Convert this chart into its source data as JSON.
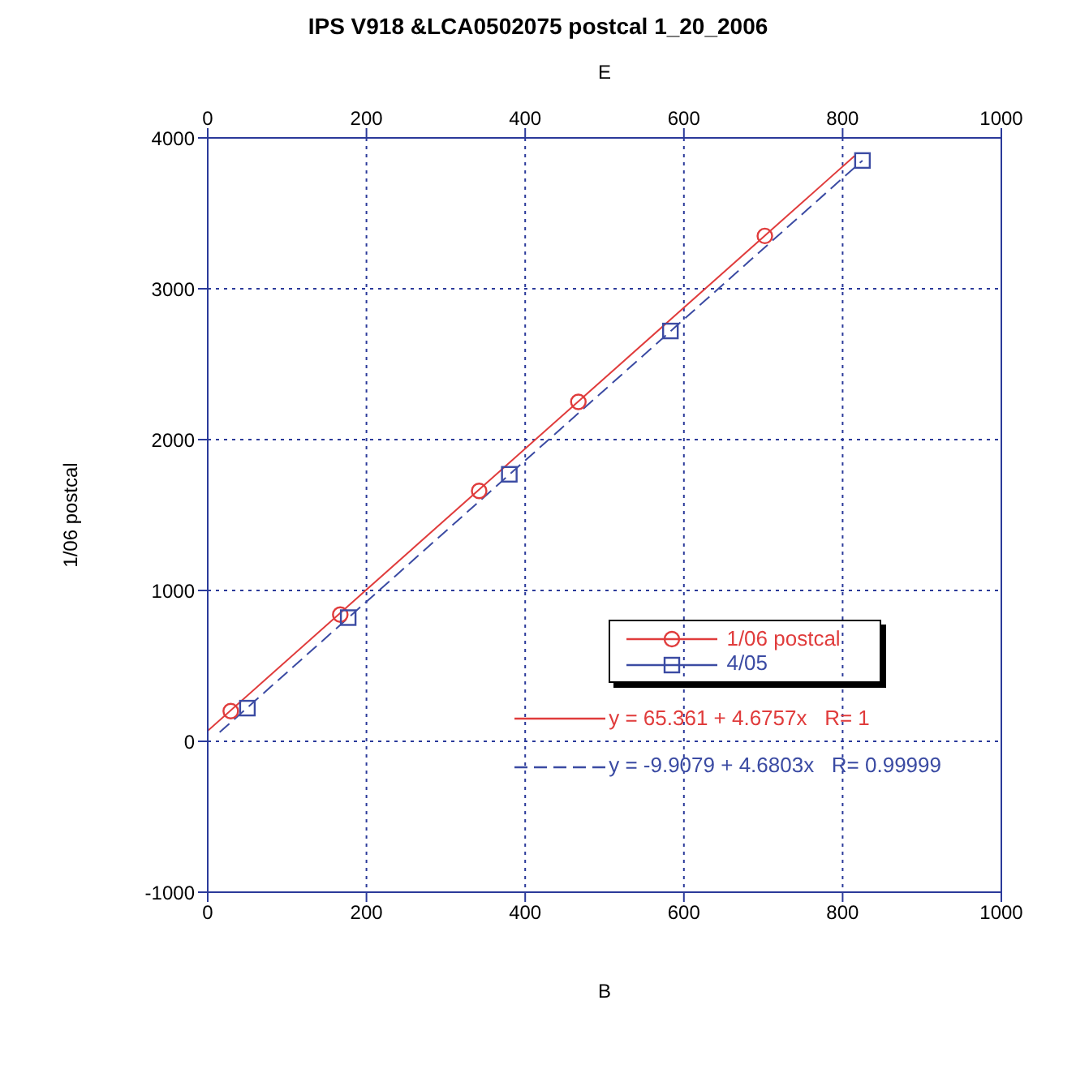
{
  "chart_data": {
    "type": "scatter",
    "title": "IPS V918 &LCA0502075 postcal 1_20_2006",
    "xlabel": "B",
    "x2label": "E",
    "ylabel": "1/06 postcal",
    "xlim": [
      0,
      1000
    ],
    "xticks": [
      0,
      200,
      400,
      600,
      800,
      1000
    ],
    "x2lim": [
      0,
      1000
    ],
    "x2ticks": [
      0,
      200,
      400,
      600,
      800,
      1000
    ],
    "ylim": [
      -1000,
      4000
    ],
    "yticks": [
      -1000,
      0,
      1000,
      2000,
      3000,
      4000
    ],
    "grid": true,
    "legend": "bottom right",
    "series": [
      {
        "name": "1/06 postcal",
        "type": "scatter",
        "color": "#e03c3c",
        "marker": "circle",
        "x": [
          29,
          167,
          342,
          467,
          702
        ],
        "values": [
          200,
          840,
          1660,
          2250,
          3350
        ]
      },
      {
        "name": "4/05",
        "type": "scatter",
        "color": "#3b4ba3",
        "marker": "square",
        "x": [
          50,
          177,
          380,
          583,
          825
        ],
        "values": [
          220,
          820,
          1770,
          2720,
          3850
        ]
      },
      {
        "name": "y = 65.361 + 4.6757x   R= 1",
        "type": "line",
        "color": "#e03c3c",
        "marker": "none",
        "line_style": "solid",
        "x": [
          0,
          815
        ],
        "values": [
          70,
          3880
        ]
      },
      {
        "name": "y = -9.9079 + 4.6803x   R= 0.99999",
        "type": "line",
        "color": "#3b4ba3",
        "marker": "none",
        "line_style": "dashed",
        "x": [
          15,
          825
        ],
        "values": [
          60,
          3850
        ]
      }
    ]
  }
}
